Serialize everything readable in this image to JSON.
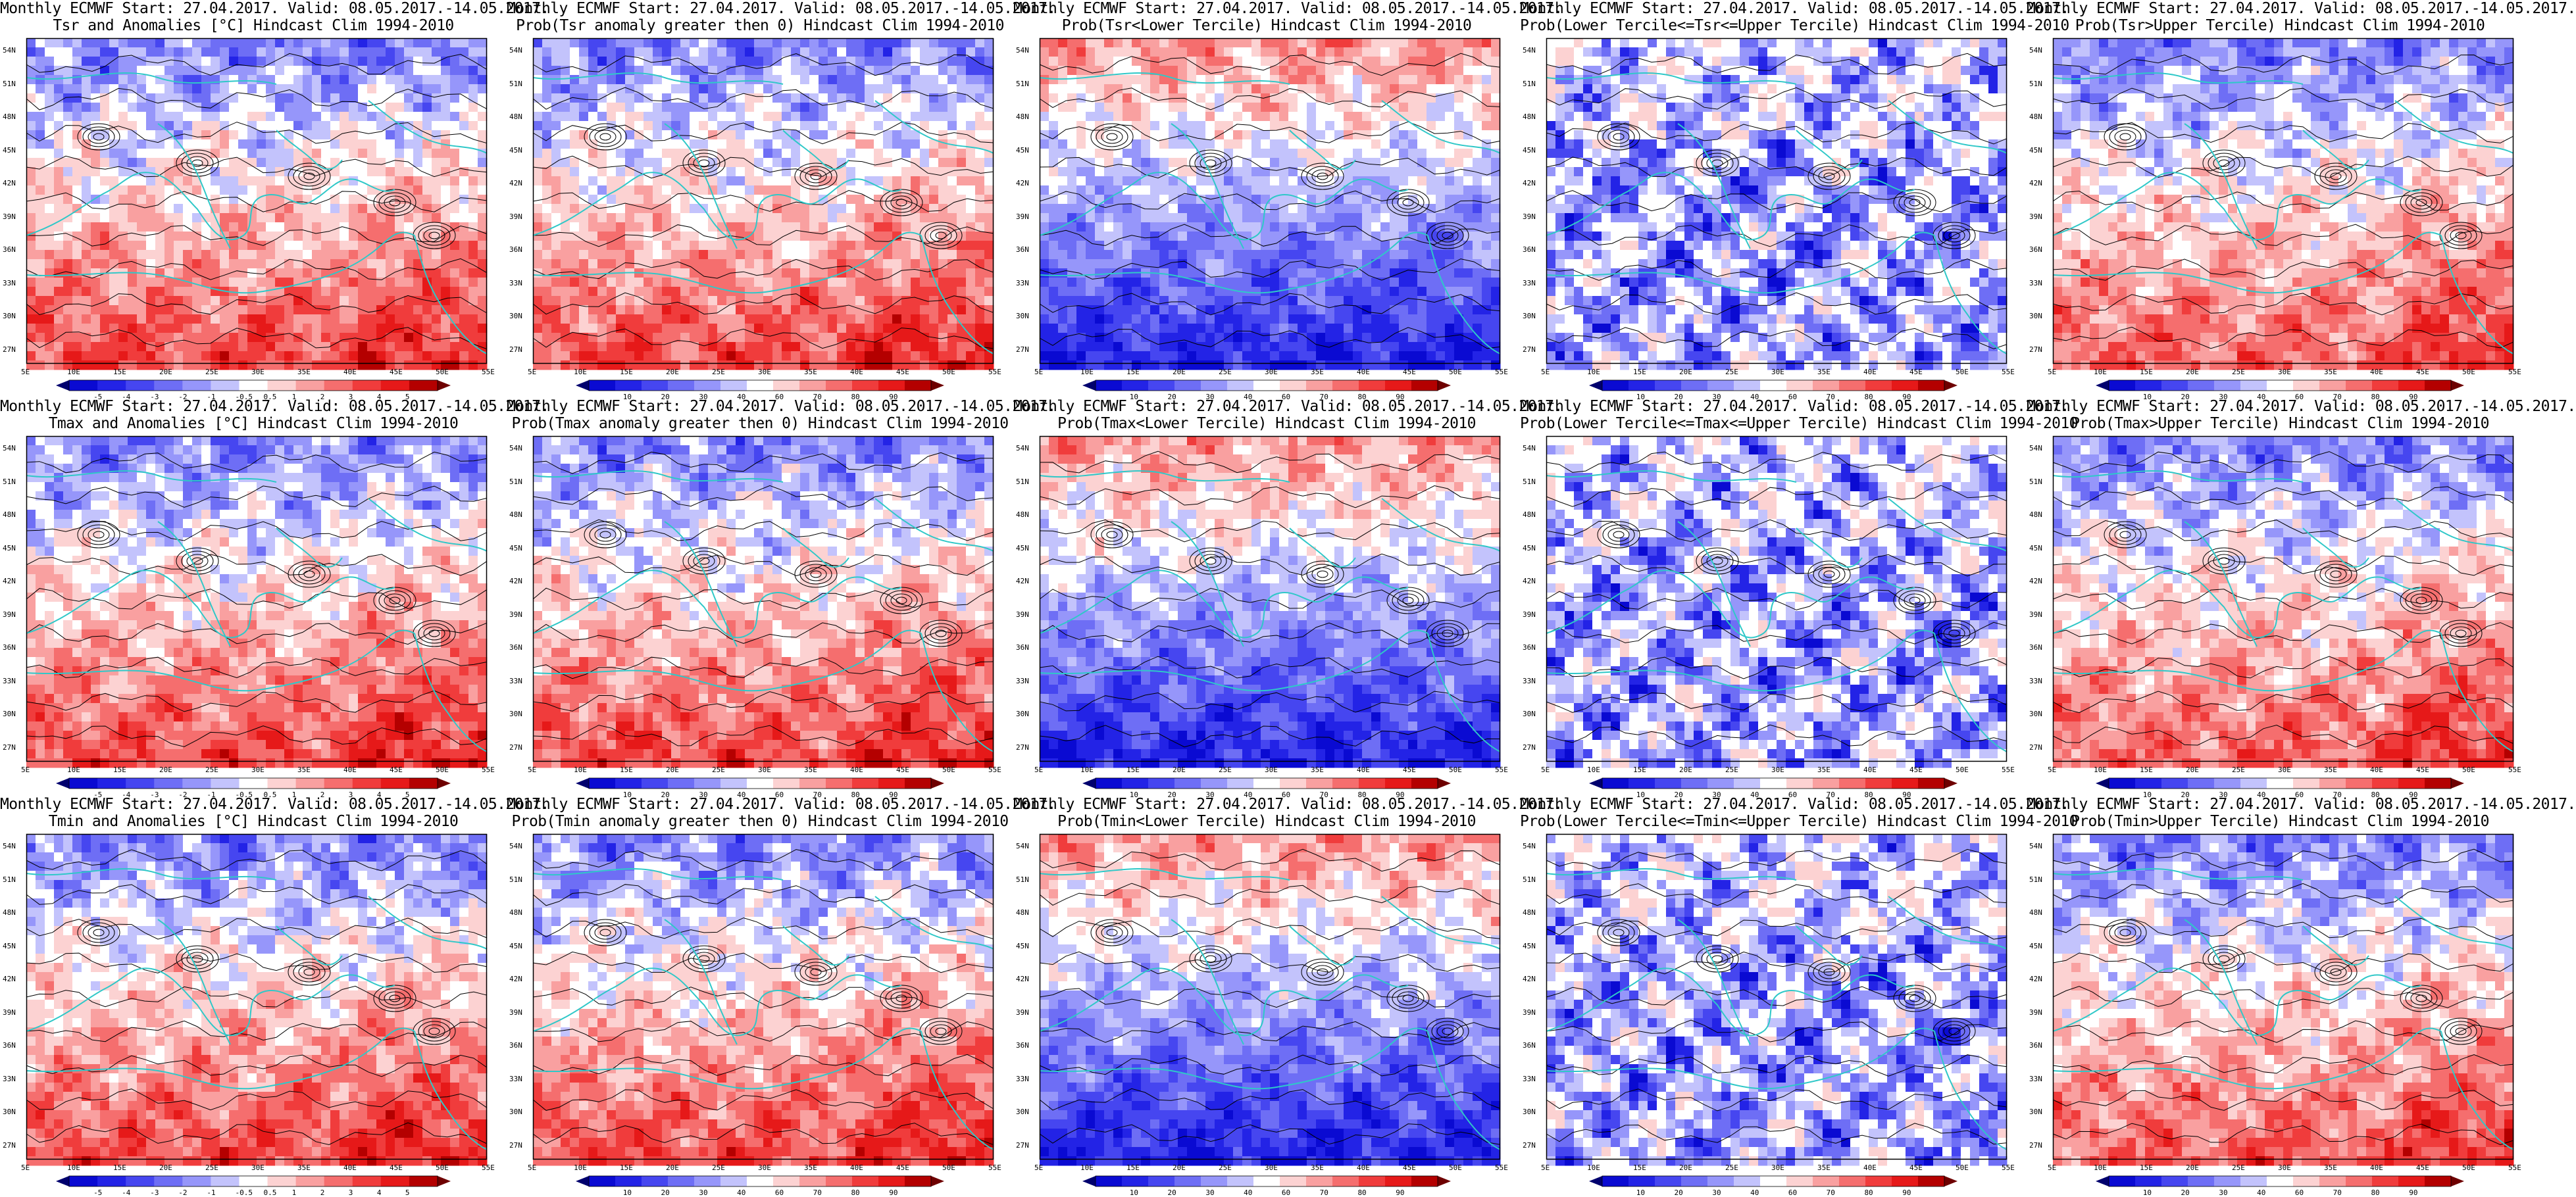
{
  "colors": {
    "blue_palette": [
      "#0a0ad2",
      "#2323e6",
      "#4646f0",
      "#6e6ef5",
      "#9696fa",
      "#c3c3fc",
      "#ffffff"
    ],
    "red_palette": [
      "#ffffff",
      "#fcd2d2",
      "#f9a0a0",
      "#f56e6e",
      "#f03c3c",
      "#e61919",
      "#b40000"
    ],
    "coast_color": "#2fc8c8",
    "contour_color": "#000000"
  },
  "axes": {
    "lat_labels": [
      "54N",
      "51N",
      "48N",
      "45N",
      "42N",
      "39N",
      "36N",
      "33N",
      "30N",
      "27N"
    ],
    "lon_labels": [
      "5E",
      "10E",
      "15E",
      "20E",
      "25E",
      "30E",
      "35E",
      "40E",
      "45E",
      "50E",
      "55E"
    ]
  },
  "colorbars": {
    "anomaly_tsr": [
      "-5",
      "-4",
      "-3",
      "-2",
      "-1",
      "-0.5",
      "0.5",
      "1",
      "2",
      "3",
      "4",
      "5"
    ],
    "anomaly_tmax": [
      "-5",
      "-4",
      "-3",
      "-2",
      "-1",
      "-0.5",
      "0.5",
      "1",
      "2",
      "3",
      "4",
      "5"
    ],
    "anomaly_tmin": [
      "-5",
      "-4",
      "-3",
      "-2",
      "-1",
      "-0.5",
      "0.5",
      "1",
      "2",
      "3",
      "4",
      "5"
    ],
    "probability": [
      "10",
      "20",
      "30",
      "40",
      "60",
      "70",
      "80",
      "90"
    ]
  },
  "panels": [
    {
      "title1": "Monthly ECMWF Start: 27.04.2017. Valid: 08.05.2017.-14.05.2017.",
      "title2": "Tsr and Anomalies [°C] Hindcast Clim 1994-2010",
      "scheme": "anomaly",
      "cbar": "anomaly_tsr"
    },
    {
      "title1": "Monthly ECMWF Start: 27.04.2017. Valid: 08.05.2017.-14.05.2017.",
      "title2": "Prob(Tsr anomaly greater then 0) Hindcast Clim 1994-2010",
      "scheme": "warm",
      "cbar": "probability"
    },
    {
      "title1": "Monthly ECMWF Start: 27.04.2017. Valid: 08.05.2017.-14.05.2017.",
      "title2": "Prob(Tsr<Lower Tercile) Hindcast Clim 1994-2010",
      "scheme": "cold",
      "cbar": "probability"
    },
    {
      "title1": "Monthly ECMWF Start: 27.04.2017. Valid: 08.05.2017.-14.05.2017.",
      "title2": "Prob(Lower Tercile<=Tsr<=Upper Tercile) Hindcast Clim 1994-2010",
      "scheme": "middle",
      "cbar": "probability"
    },
    {
      "title1": "Monthly ECMWF Start: 27.04.2017. Valid: 08.05.2017.-14.05.2017.",
      "title2": "Prob(Tsr>Upper Tercile) Hindcast Clim 1994-2010",
      "scheme": "upper",
      "cbar": "probability"
    },
    {
      "title1": "Monthly ECMWF Start: 27.04.2017. Valid: 08.05.2017.-14.05.2017.",
      "title2": "Tmax and Anomalies [°C] Hindcast Clim 1994-2010",
      "scheme": "anomaly",
      "cbar": "anomaly_tmax"
    },
    {
      "title1": "Monthly ECMWF Start: 27.04.2017. Valid: 08.05.2017.-14.05.2017.",
      "title2": "Prob(Tmax anomaly greater then 0) Hindcast Clim 1994-2010",
      "scheme": "warm",
      "cbar": "probability"
    },
    {
      "title1": "Monthly ECMWF Start: 27.04.2017. Valid: 08.05.2017.-14.05.2017.",
      "title2": "Prob(Tmax<Lower Tercile) Hindcast Clim 1994-2010",
      "scheme": "cold",
      "cbar": "probability"
    },
    {
      "title1": "Monthly ECMWF Start: 27.04.2017. Valid: 08.05.2017.-14.05.2017.",
      "title2": "Prob(Lower Tercile<=Tmax<=Upper Tercile) Hindcast Clim 1994-2010",
      "scheme": "middle",
      "cbar": "probability"
    },
    {
      "title1": "Monthly ECMWF Start: 27.04.2017. Valid: 08.05.2017.-14.05.2017.",
      "title2": "Prob(Tmax>Upper Tercile) Hindcast Clim 1994-2010",
      "scheme": "upper",
      "cbar": "probability"
    },
    {
      "title1": "Monthly ECMWF Start: 27.04.2017. Valid: 08.05.2017.-14.05.2017.",
      "title2": "Tmin and Anomalies [°C] Hindcast Clim 1994-2010",
      "scheme": "anomaly",
      "cbar": "anomaly_tmin"
    },
    {
      "title1": "Monthly ECMWF Start: 27.04.2017. Valid: 08.05.2017.-14.05.2017.",
      "title2": "Prob(Tmin anomaly greater then 0) Hindcast Clim 1994-2010",
      "scheme": "warm",
      "cbar": "probability"
    },
    {
      "title1": "Monthly ECMWF Start: 27.04.2017. Valid: 08.05.2017.-14.05.2017.",
      "title2": "Prob(Tmin<Lower Tercile) Hindcast Clim 1994-2010",
      "scheme": "cold",
      "cbar": "probability"
    },
    {
      "title1": "Monthly ECMWF Start: 27.04.2017. Valid: 08.05.2017.-14.05.2017.",
      "title2": "Prob(Lower Tercile<=Tmin<=Upper Tercile) Hindcast Clim 1994-2010",
      "scheme": "middle",
      "cbar": "probability"
    },
    {
      "title1": "Monthly ECMWF Start: 27.04.2017. Valid: 08.05.2017.-14.05.2017.",
      "title2": "Prob(Tmin>Upper Tercile) Hindcast Clim 1994-2010",
      "scheme": "upper",
      "cbar": "probability"
    }
  ]
}
